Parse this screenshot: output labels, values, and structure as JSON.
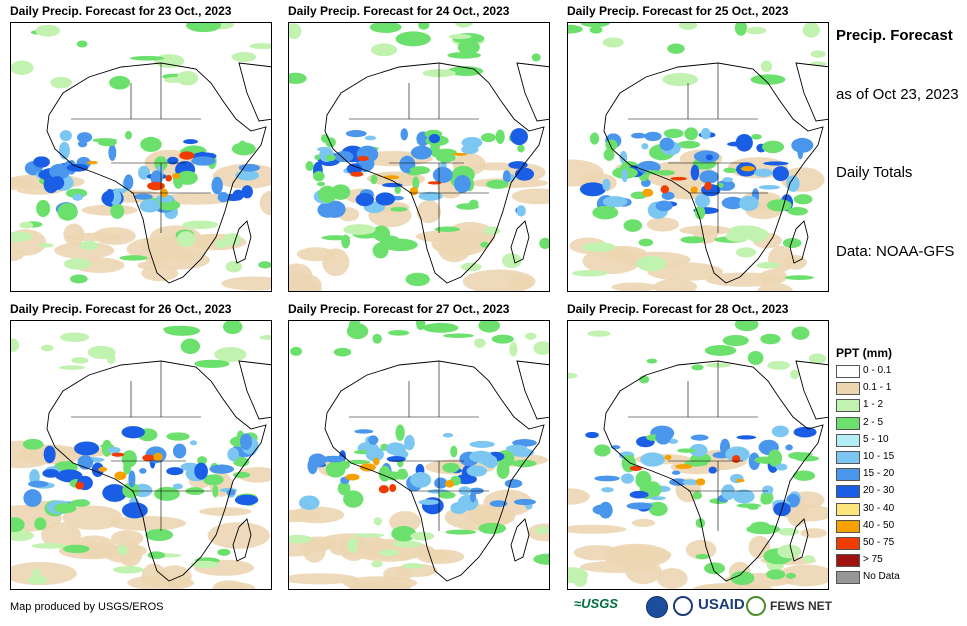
{
  "panels": [
    {
      "title": "Daily Precip. Forecast for 23 Oct., 2023"
    },
    {
      "title": "Daily Precip. Forecast for 24 Oct., 2023"
    },
    {
      "title": "Daily Precip. Forecast for 25 Oct., 2023"
    },
    {
      "title": "Daily Precip. Forecast for 26 Oct., 2023"
    },
    {
      "title": "Daily Precip. Forecast for 27 Oct., 2023"
    },
    {
      "title": "Daily Precip. Forecast for 28 Oct., 2023"
    }
  ],
  "side": {
    "title": "Precip. Forecast",
    "asof": "as of Oct 23, 2023",
    "daily": "Daily Totals",
    "data": "Data: NOAA-GFS"
  },
  "legend": {
    "title": "PPT (mm)",
    "items": [
      {
        "label": "0 - 0.1",
        "color": "#ffffff"
      },
      {
        "label": "0.1 - 1",
        "color": "#ecd6b2"
      },
      {
        "label": "1 - 2",
        "color": "#c2f2b0"
      },
      {
        "label": "2 - 5",
        "color": "#6ce06c"
      },
      {
        "label": "5 - 10",
        "color": "#b2eef4"
      },
      {
        "label": "10 - 15",
        "color": "#7cc6f2"
      },
      {
        "label": "15 - 20",
        "color": "#4a96ec"
      },
      {
        "label": "20 - 30",
        "color": "#1a5ee6"
      },
      {
        "label": "30 - 40",
        "color": "#fce67c"
      },
      {
        "label": "40 - 50",
        "color": "#f5a200"
      },
      {
        "label": "50 - 75",
        "color": "#f03c00"
      },
      {
        "label": "> 75",
        "color": "#a01410"
      },
      {
        "label": "No Data",
        "color": "#969696"
      }
    ]
  },
  "credit": "Map produced by USGS/EROS",
  "logos": {
    "usgs": "≈USGS",
    "usaid": "USAID",
    "fews": "FEWS NET"
  }
}
